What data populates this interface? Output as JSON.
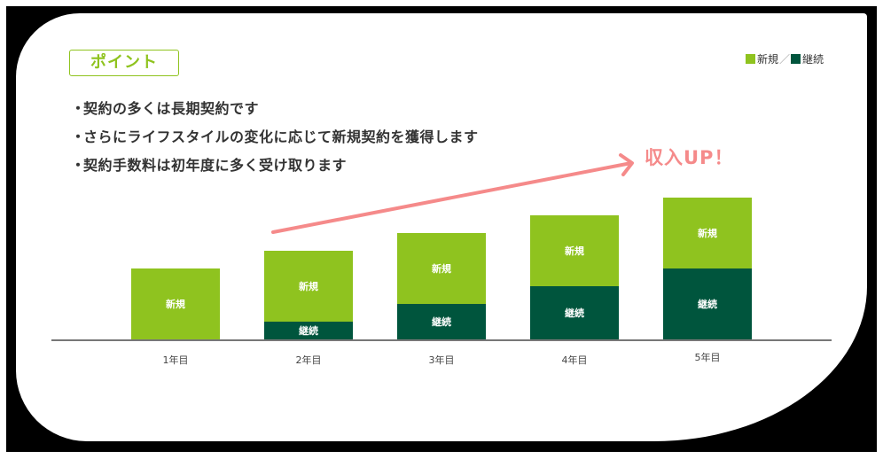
{
  "header": {
    "point_label": "ポイント"
  },
  "legend": {
    "items": [
      {
        "label": "新規",
        "color": "#8fc31f"
      },
      {
        "label": "継続",
        "color": "#00553d"
      }
    ],
    "separator": "／"
  },
  "bullets": [
    "契約の多くは長期契約です",
    "さらにライフスタイルの変化に応じて新規契約を獲得します",
    "契約手数料は初年度に多く受け取ります"
  ],
  "bullet_marker": "・",
  "annotation": {
    "text": "収入UP！",
    "color": "#f58a8a"
  },
  "chart_data": {
    "type": "bar",
    "stacked": true,
    "title": "",
    "xlabel": "",
    "ylabel": "",
    "categories": [
      "1年目",
      "2年目",
      "3年目",
      "4年目",
      "5年目"
    ],
    "series": [
      {
        "name": "継続",
        "color": "#00553d",
        "values": [
          0,
          1,
          2,
          3,
          4
        ]
      },
      {
        "name": "新規",
        "color": "#8fc31f",
        "values": [
          4,
          4,
          4,
          4,
          4
        ]
      }
    ],
    "segment_labels": {
      "new": "新規",
      "cont": "継続"
    },
    "legend_position": "top-right",
    "grid": false,
    "annotation": "収入UP！ (upward arrow above bars)"
  }
}
